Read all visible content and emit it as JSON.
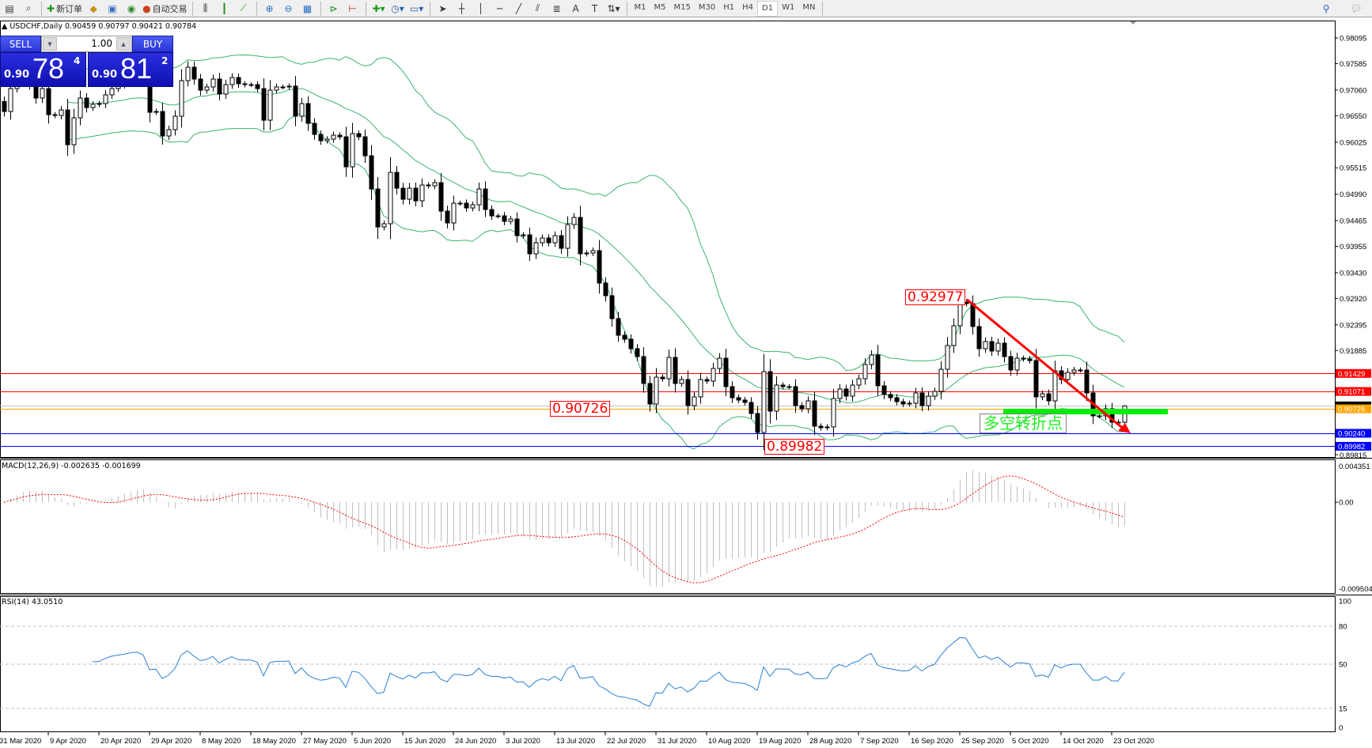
{
  "toolbar": {
    "new_order_label": "新订单",
    "auto_trading_label": "自动交易",
    "timeframes": [
      "M1",
      "M5",
      "M15",
      "M30",
      "H1",
      "H4",
      "D1",
      "W1",
      "MN"
    ],
    "active_timeframe": "D1"
  },
  "chart": {
    "symbol_header": "USDCHF,Daily",
    "ohlc_header": "0.90459 0.90797 0.90421 0.90784"
  },
  "trade_panel": {
    "sell_label": "SELL",
    "buy_label": "BUY",
    "lot": "1.00",
    "sell": {
      "big": "0.90",
      "main": "78",
      "pip": "4"
    },
    "buy": {
      "big": "0.90",
      "main": "81",
      "pip": "2"
    }
  },
  "annotations": {
    "high_label": "0.92977",
    "level_label": "0.90726",
    "low_label": "0.89982",
    "pivot_text": "多空转折点"
  },
  "chart_data": {
    "type": "candlestick",
    "symbol": "USDCHF",
    "timeframe": "Daily",
    "last_bar": {
      "open": 0.90459,
      "high": 0.90797,
      "low": 0.90421,
      "close": 0.90784
    },
    "close": [
      0.96634,
      0.97089,
      0.97199,
      0.97278,
      0.97152,
      0.96901,
      0.97089,
      0.96571,
      0.96555,
      0.96665,
      0.95974,
      0.96508,
      0.96901,
      0.96712,
      0.96775,
      0.96791,
      0.96964,
      0.97089,
      0.97152,
      0.97199,
      0.97278,
      0.97309,
      0.97215,
      0.96618,
      0.96634,
      0.96147,
      0.96273,
      0.9654,
      0.97247,
      0.97514,
      0.97278,
      0.97058,
      0.97121,
      0.97278,
      0.9698,
      0.97168,
      0.97309,
      0.97184,
      0.97168,
      0.97168,
      0.97089,
      0.96461,
      0.97058,
      0.97121,
      0.97121,
      0.97137,
      0.9654,
      0.96791,
      0.96398,
      0.96178,
      0.96053,
      0.96084,
      0.96163,
      0.96131,
      0.95534,
      0.96194,
      0.96131,
      0.95754,
      0.95094,
      0.9434,
      0.94403,
      0.95424,
      0.9511,
      0.9489,
      0.9511,
      0.94859,
      0.95173,
      0.95157,
      0.9522,
      0.94654,
      0.94419,
      0.94812,
      0.94812,
      0.94717,
      0.9478,
      0.95094,
      0.94686,
      0.9456,
      0.9456,
      0.9445,
      0.94497,
      0.94167,
      0.94183,
      0.93806,
      0.94026,
      0.9412,
      0.94026,
      0.94167,
      0.93916,
      0.94387,
      0.94529,
      0.93806,
      0.93822,
      0.93869,
      0.93225,
      0.92973,
      0.92518,
      0.92188,
      0.92109,
      0.91921,
      0.91764,
      0.9123,
      0.90821,
      0.91355,
      0.91324,
      0.91748,
      0.9123,
      0.91308,
      0.9079,
      0.90963,
      0.91308,
      0.91277,
      0.91528,
      0.91732,
      0.91167,
      0.90947,
      0.909,
      0.90853,
      0.90633,
      0.90256,
      0.91465,
      0.9068,
      0.91198,
      0.91167,
      0.91167,
      0.9079,
      0.90727,
      0.90884,
      0.90381,
      0.9035,
      0.90366,
      0.90931,
      0.9112,
      0.90978,
      0.91198,
      0.91324,
      0.91607,
      0.91795,
      0.91183,
      0.9101,
      0.90947,
      0.90868,
      0.90821,
      0.90837,
      0.91041,
      0.9079,
      0.90978,
      0.91073,
      0.91512,
      0.91984,
      0.92376,
      0.92848,
      0.92816,
      0.92361,
      0.91921,
      0.92062,
      0.91874,
      0.92031,
      0.91764,
      0.91497,
      0.91732,
      0.91717,
      0.91685,
      0.90963,
      0.91025,
      0.90884,
      0.91481,
      0.91308,
      0.9145,
      0.91497,
      0.91497,
      0.91041,
      0.90586,
      0.90586,
      0.90727,
      0.9046,
      0.90444,
      0.90784
    ],
    "price_axis_ticks": [
      "0.98095",
      "0.97585",
      "0.97060",
      "0.96550",
      "0.96025",
      "0.95515",
      "0.94990",
      "0.94465",
      "0.93955",
      "0.93430",
      "0.92920",
      "0.92395",
      "0.91885",
      "0.89815"
    ],
    "horizontal_lines": [
      {
        "price": 0.91429,
        "label": "0.91429",
        "color": "#ff0000"
      },
      {
        "price": 0.91071,
        "label": "0.91071",
        "color": "#ff0000"
      },
      {
        "price": 0.90726,
        "label": "0.90726",
        "color": "#ffa500"
      },
      {
        "price": 0.9024,
        "label": "0.90240",
        "color": "#0000ff"
      },
      {
        "price": 0.89982,
        "label": "0.89982",
        "color": "#0000ff"
      }
    ],
    "current_price_line": {
      "price": 0.90784,
      "color": "#c0c0c0"
    },
    "trendline": {
      "from_price": 0.92977,
      "to_price": 0.9024,
      "color": "#ff0000"
    },
    "pivot_zone": {
      "price": 0.90726,
      "color": "#00ee00"
    },
    "date_labels": [
      "31 Mar 2020",
      "9 Apr 2020",
      "20 Apr 2020",
      "29 Apr 2020",
      "8 May 2020",
      "18 May 2020",
      "27 May 2020",
      "5 Jun 2020",
      "15 Jun 2020",
      "24 Jun 2020",
      "3 Jul 2020",
      "13 Jul 2020",
      "22 Jul 2020",
      "31 Jul 2020",
      "10 Aug 2020",
      "19 Aug 2020",
      "28 Aug 2020",
      "7 Sep 2020",
      "16 Sep 2020",
      "25 Sep 2020",
      "5 Oct 2020",
      "14 Oct 2020",
      "23 Oct 2020"
    ],
    "bollinger": {
      "period": 20,
      "deviation": 2,
      "color": "#3cb371"
    },
    "macd": {
      "label": "MACD(12,26,9) -0.002635 -0.001699",
      "fast": 12,
      "slow": 26,
      "signal": 9,
      "ylim": [
        -0.009504,
        0.004351
      ],
      "axis_labels": [
        "0.004351",
        "0.00",
        "-0.009504"
      ],
      "histogram_color": "#c0c0c0",
      "signal_color": "#ff0000"
    },
    "rsi": {
      "label": "RSI(14) 43.0510",
      "period": 14,
      "ylim": [
        0,
        100
      ],
      "levels": [
        "100",
        "80",
        "50",
        "15",
        "0"
      ],
      "color": "#2a7fd4"
    },
    "grid": false
  }
}
